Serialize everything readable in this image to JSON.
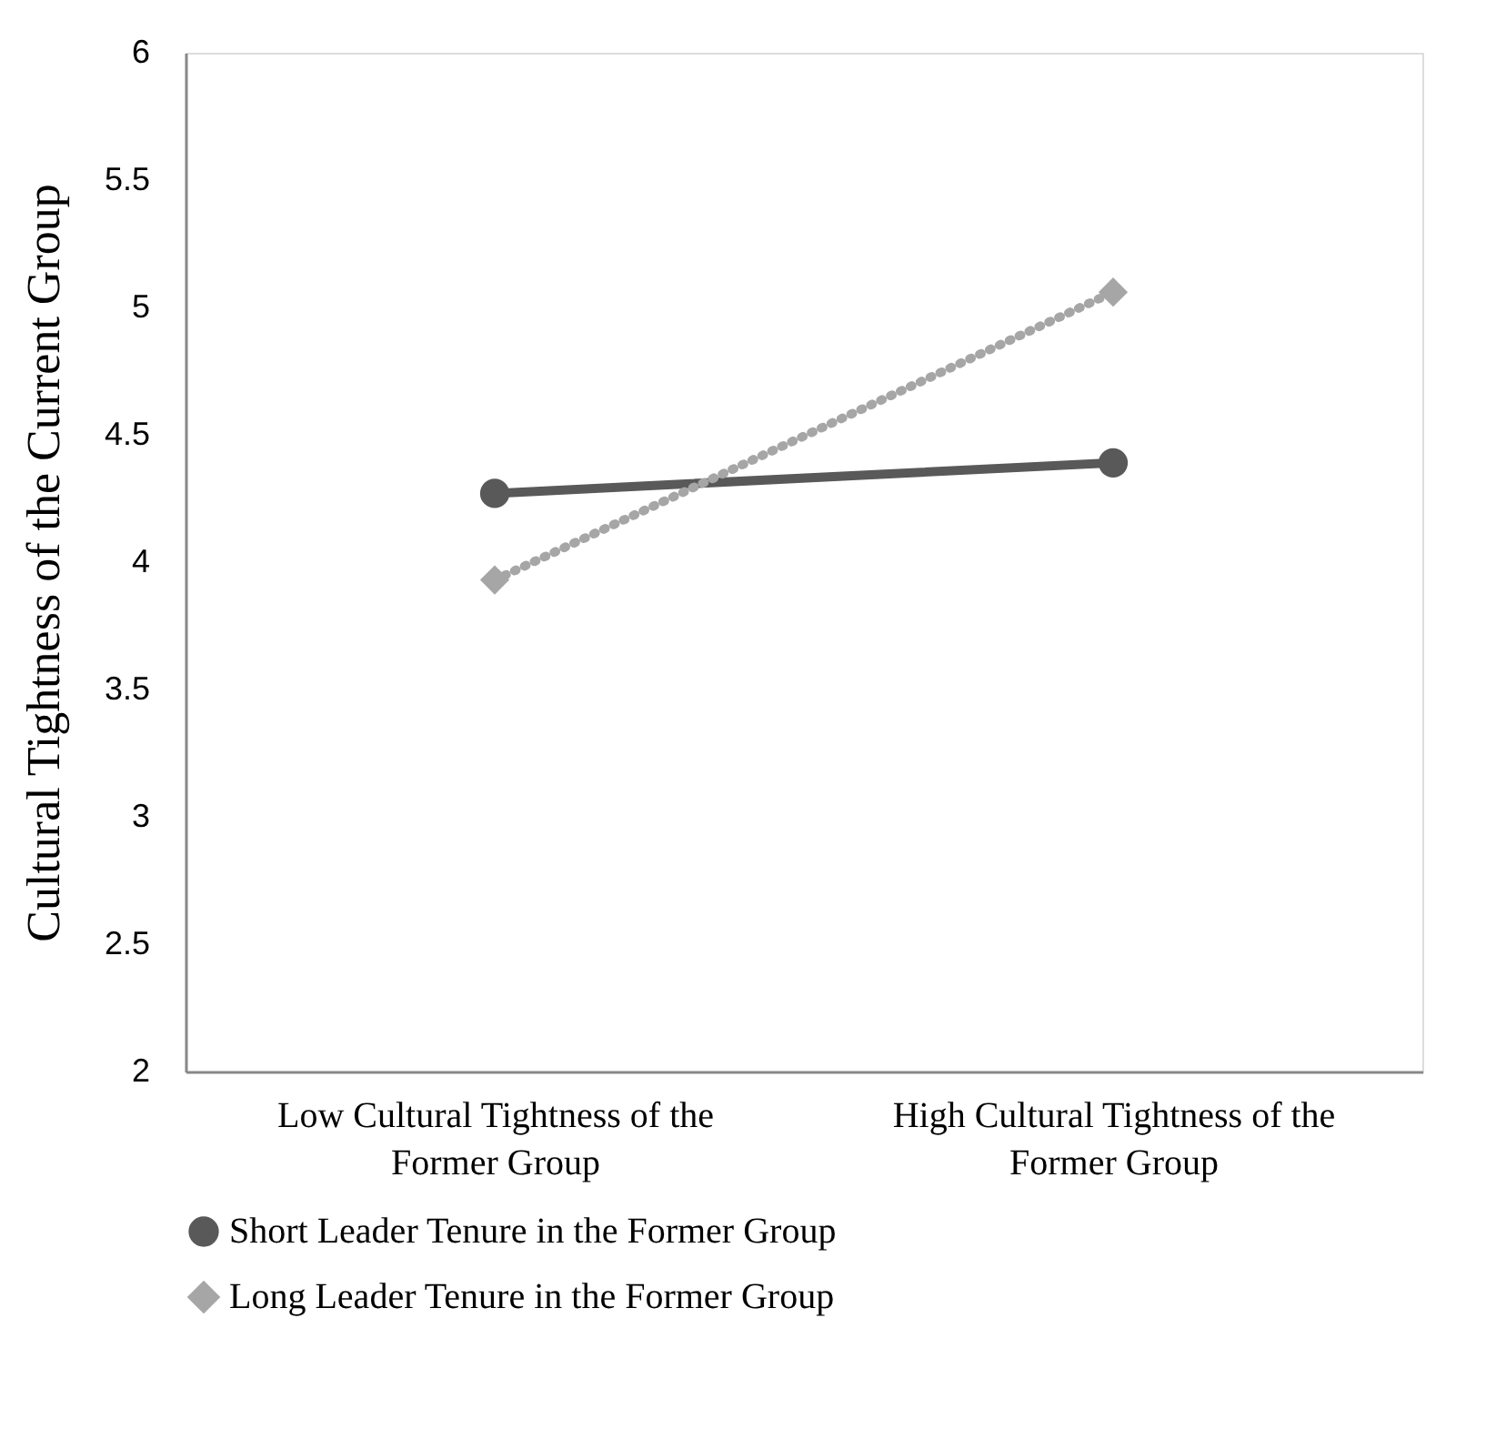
{
  "chart_data": {
    "type": "line",
    "ylabel": "Cultural Tightness of the Current Group",
    "categories": [
      "Low Cultural Tightness of the Former Group",
      "High Cultural Tightness of the Former Group"
    ],
    "series": [
      {
        "name": "Short Leader Tenure in the Former Group",
        "color": "#595959",
        "values": [
          4.27,
          4.39
        ],
        "marker": "circle",
        "line_style": "solid"
      },
      {
        "name": "Long Leader Tenure in the Former Group",
        "color": "#a6a6a6",
        "values": [
          3.93,
          5.06
        ],
        "marker": "diamond",
        "line_style": "dotted"
      }
    ],
    "ylim": [
      2,
      6
    ],
    "yticks": [
      2,
      2.5,
      3,
      3.5,
      4,
      4.5,
      5,
      5.5,
      6
    ],
    "grid": false,
    "legend": "bottom"
  }
}
